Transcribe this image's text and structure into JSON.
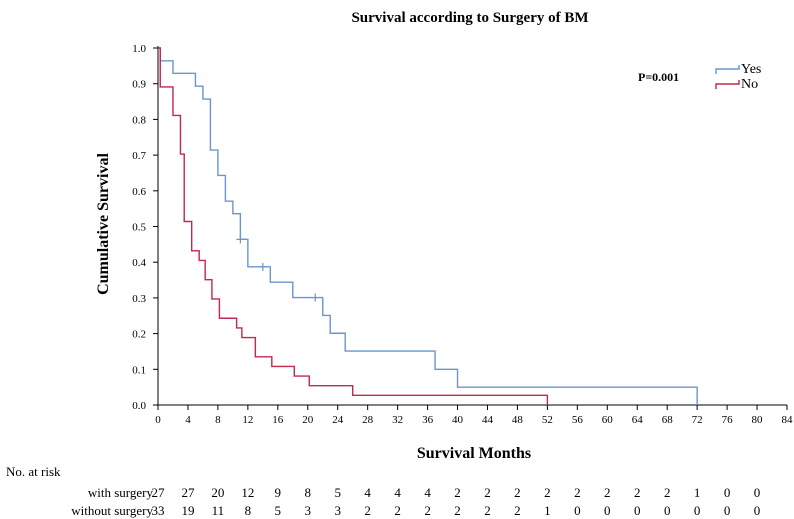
{
  "chart_data": {
    "type": "line",
    "title": "Survival according to Surgery of BM",
    "xlabel": "Survival Months",
    "ylabel": "Cumulative Survival",
    "xlim": [
      0,
      84
    ],
    "ylim": [
      0,
      1.0
    ],
    "x_ticks": [
      0,
      4,
      8,
      12,
      16,
      20,
      24,
      28,
      32,
      36,
      40,
      44,
      48,
      52,
      56,
      60,
      64,
      68,
      72,
      76,
      80,
      84
    ],
    "y_ticks": [
      0.0,
      0.1,
      0.2,
      0.3,
      0.4,
      0.5,
      0.6,
      0.7,
      0.8,
      0.9,
      1.0
    ],
    "x_tick_labels": [
      "0",
      "4",
      "8",
      "12",
      "16",
      "20",
      "24",
      "28",
      "32",
      "36",
      "40",
      "44",
      "48",
      "52",
      "56",
      "60",
      "64",
      "68",
      "72",
      "76",
      "80",
      "84"
    ],
    "y_tick_labels": [
      "0.0",
      "0.1",
      "0.2",
      "0.3",
      "0.4",
      "0.5",
      "0.6",
      "0.7",
      "0.8",
      "0.9",
      "1.0"
    ],
    "grid": false,
    "legend_position": "top-right",
    "annotation": "P=0.001",
    "series": [
      {
        "name": "Yes",
        "color": "#6a96cc",
        "steps": [
          [
            0,
            1.0
          ],
          [
            0.3,
            0.964
          ],
          [
            2,
            0.929
          ],
          [
            5,
            0.893
          ],
          [
            6,
            0.857
          ],
          [
            7,
            0.714
          ],
          [
            8,
            0.643
          ],
          [
            9,
            0.571
          ],
          [
            10,
            0.536
          ],
          [
            11,
            0.464
          ],
          [
            12,
            0.387
          ],
          [
            15,
            0.344
          ],
          [
            18,
            0.301
          ],
          [
            22,
            0.251
          ],
          [
            23,
            0.201
          ],
          [
            25,
            0.151
          ],
          [
            37,
            0.1
          ],
          [
            40,
            0.05
          ],
          [
            72,
            0.0
          ]
        ],
        "censored": [
          [
            11,
            0.464
          ],
          [
            14,
            0.387
          ],
          [
            21,
            0.301
          ]
        ]
      },
      {
        "name": "No",
        "color": "#c0284d",
        "steps": [
          [
            0,
            1.0
          ],
          [
            0.3,
            0.891
          ],
          [
            2,
            0.811
          ],
          [
            3,
            0.703
          ],
          [
            3.5,
            0.514
          ],
          [
            4.5,
            0.432
          ],
          [
            5.5,
            0.405
          ],
          [
            6.3,
            0.351
          ],
          [
            7.2,
            0.297
          ],
          [
            8.2,
            0.243
          ],
          [
            10.5,
            0.216
          ],
          [
            11.2,
            0.189
          ],
          [
            13,
            0.135
          ],
          [
            15.2,
            0.108
          ],
          [
            18.2,
            0.081
          ],
          [
            20.2,
            0.054
          ],
          [
            26,
            0.027
          ],
          [
            52,
            0.0
          ]
        ],
        "censored": []
      }
    ]
  },
  "risk_table": {
    "header": "No. at risk",
    "rows": [
      {
        "label": "with surgery",
        "values": [
          "27",
          "27",
          "20",
          "12",
          "9",
          "8",
          "5",
          "4",
          "4",
          "4",
          "2",
          "2",
          "2",
          "2",
          "2",
          "2",
          "2",
          "2",
          "1",
          "0",
          "0"
        ]
      },
      {
        "label": "without surgery",
        "values": [
          "33",
          "19",
          "11",
          "8",
          "5",
          "3",
          "3",
          "2",
          "2",
          "2",
          "2",
          "2",
          "2",
          "1",
          "0",
          "0",
          "0",
          "0",
          "0",
          "0",
          "0"
        ]
      }
    ]
  }
}
